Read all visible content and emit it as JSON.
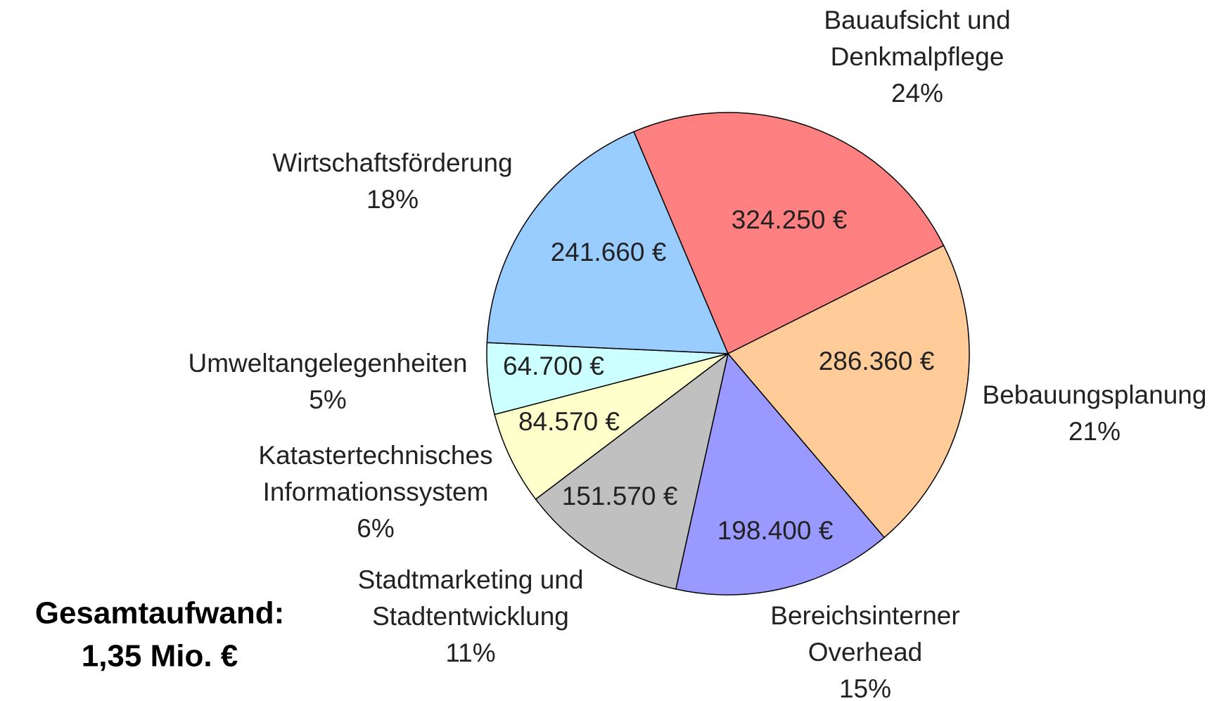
{
  "chart_data": {
    "type": "pie",
    "categories": [
      [
        "Bauaufsicht und",
        "Denkmalpflege"
      ],
      [
        "Bebauungsplanung"
      ],
      [
        "Bereichsinterner",
        "Overhead"
      ],
      [
        "Stadtmarketing und",
        "Stadtentwicklung"
      ],
      [
        "Katastertechnisches",
        "Informationssystem"
      ],
      [
        "Umweltangelegenheiten"
      ],
      [
        "Wirtschaftsförderung"
      ]
    ],
    "values": [
      324250,
      286360,
      198400,
      151570,
      84570,
      64700,
      241660
    ],
    "value_labels": [
      "324.250 €",
      "286.360 €",
      "198.400 €",
      "151.570 €",
      "84.570 €",
      "64.700 €",
      "241.660 €"
    ],
    "percentages": [
      24,
      21,
      15,
      11,
      6,
      5,
      18
    ],
    "percentage_labels": [
      "24%",
      "21%",
      "15%",
      "11%",
      "6%",
      "5%",
      "18%"
    ],
    "colors": [
      "#ff8080",
      "#ffcc99",
      "#9999ff",
      "#c0c0c0",
      "#ffffcc",
      "#ccffff",
      "#99ccff"
    ],
    "annotation": [
      "Gesamtaufwand:",
      "1,35 Mio. €"
    ]
  }
}
